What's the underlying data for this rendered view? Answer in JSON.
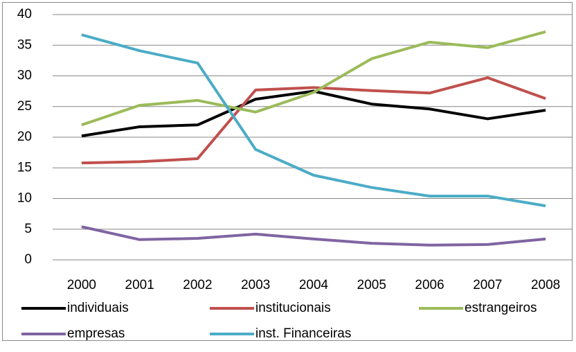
{
  "chart_data": {
    "type": "line",
    "categories": [
      "2000",
      "2001",
      "2002",
      "2003",
      "2004",
      "2005",
      "2006",
      "2007",
      "2008"
    ],
    "series": [
      {
        "name": "individuais",
        "color": "#000000",
        "values": [
          20.2,
          21.7,
          22.0,
          26.2,
          27.5,
          25.4,
          24.6,
          23.0,
          24.4
        ]
      },
      {
        "name": "institucionais",
        "color": "#c0504d",
        "values": [
          15.8,
          16.0,
          16.5,
          27.7,
          28.1,
          27.6,
          27.2,
          29.7,
          26.3
        ]
      },
      {
        "name": "estrangeiros",
        "color": "#9bbb59",
        "values": [
          22.0,
          25.2,
          26.0,
          24.1,
          27.3,
          32.8,
          35.5,
          34.6,
          37.2
        ]
      },
      {
        "name": "empresas",
        "color": "#8064a2",
        "values": [
          5.4,
          3.3,
          3.5,
          4.2,
          3.4,
          2.7,
          2.4,
          2.5,
          3.4
        ]
      },
      {
        "name": "inst. Financeiras",
        "color": "#4bacc6",
        "values": [
          36.7,
          34.1,
          32.1,
          18.0,
          13.8,
          11.8,
          10.4,
          10.4,
          8.8
        ]
      }
    ],
    "ylim": [
      0,
      40
    ],
    "yticks": [
      0,
      5,
      10,
      15,
      20,
      25,
      30,
      35,
      40
    ],
    "grid": true,
    "legend": "bottom"
  }
}
